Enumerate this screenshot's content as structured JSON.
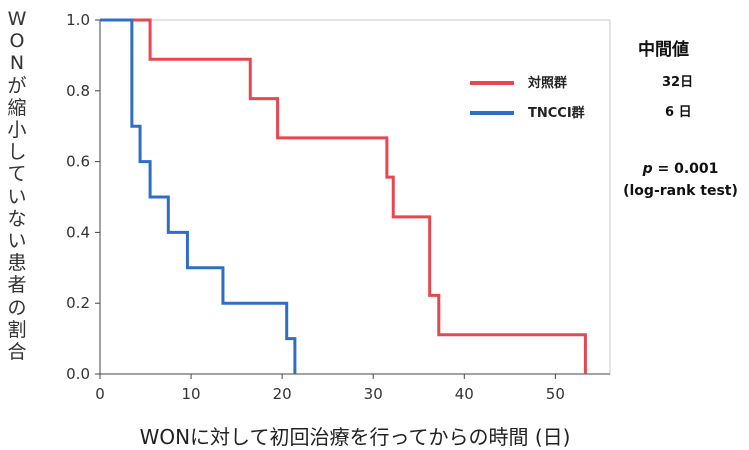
{
  "chart_data": {
    "type": "line",
    "subtype": "kaplan-meier-step",
    "ylabel": "WONが縮小していない患者の割合",
    "xlabel": "WONに対して初回治療を行ってからの時間 (日)",
    "xlim": [
      0,
      56
    ],
    "ylim": [
      0,
      1.0
    ],
    "xticks": [
      0,
      10,
      20,
      30,
      40,
      50
    ],
    "yticks": [
      0.0,
      0.2,
      0.4,
      0.6,
      0.8,
      1.0
    ],
    "xtick_labels": [
      "0",
      "10",
      "20",
      "30",
      "40",
      "50"
    ],
    "ytick_labels": [
      "0.0",
      "0.2",
      "0.4",
      "0.6",
      "0.8",
      "1.0"
    ],
    "grid": false,
    "legend_position": "top-right",
    "series": [
      {
        "name": "対照群",
        "color": "#e8474f",
        "steps": [
          {
            "x": 0,
            "y": 1.0
          },
          {
            "x": 5.5,
            "y": 0.889
          },
          {
            "x": 16.5,
            "y": 0.778
          },
          {
            "x": 19.5,
            "y": 0.667
          },
          {
            "x": 31.5,
            "y": 0.556
          },
          {
            "x": 32.2,
            "y": 0.444
          },
          {
            "x": 36.2,
            "y": 0.222
          },
          {
            "x": 37.2,
            "y": 0.111
          },
          {
            "x": 53.3,
            "y": 0.0
          }
        ],
        "end_x": 53.3
      },
      {
        "name": "TNCCI群",
        "color": "#2f6ec4",
        "steps": [
          {
            "x": 0,
            "y": 1.0
          },
          {
            "x": 3.5,
            "y": 0.7
          },
          {
            "x": 4.4,
            "y": 0.6
          },
          {
            "x": 5.5,
            "y": 0.5
          },
          {
            "x": 7.5,
            "y": 0.4
          },
          {
            "x": 9.6,
            "y": 0.3
          },
          {
            "x": 13.5,
            "y": 0.2
          },
          {
            "x": 20.5,
            "y": 0.1
          },
          {
            "x": 21.4,
            "y": 0.0
          }
        ],
        "end_x": 21.4
      }
    ]
  },
  "annotations": {
    "median_title": "中間値",
    "median_control": "32日",
    "median_tncci": "6 日",
    "p_prefix": "p",
    "p_value_text": " = 0.001",
    "test_name": "(log-rank test)"
  }
}
